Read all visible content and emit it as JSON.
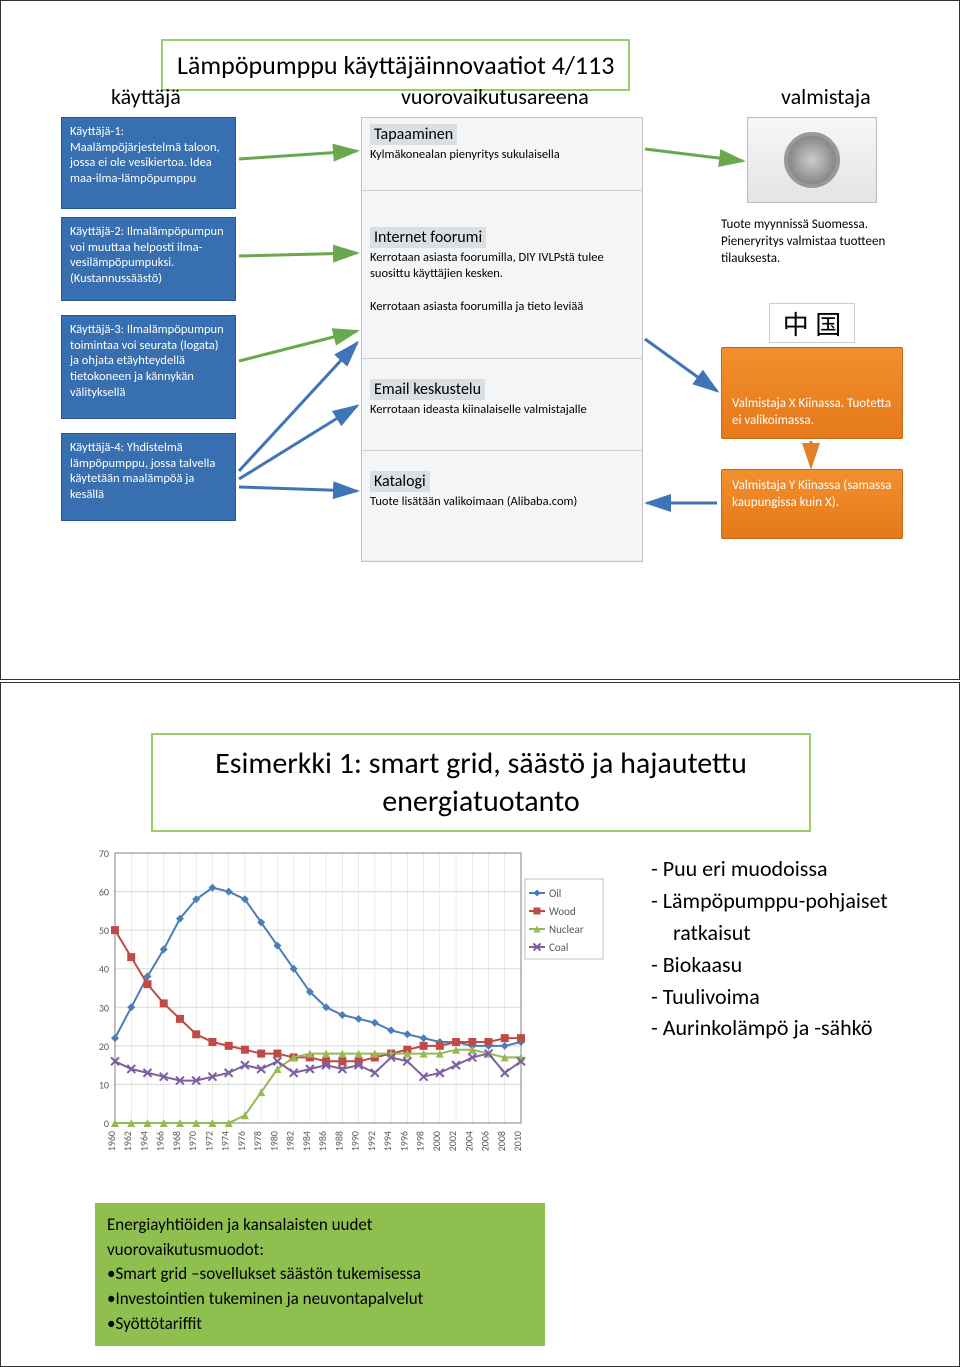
{
  "slide1": {
    "title": "Lämpöpumppu käyttäjäinnovaatiot 4/113",
    "columns": {
      "user": "käyttäjä",
      "arena": "vuorovaikutusareena",
      "manuf": "valmistaja"
    },
    "users": [
      "Käyttäjä-1:\nMaalämpöjärjestelmä taloon, jossa ei ole vesikiertoa. Idea maa-ilma-lämpöpumppu",
      "Käyttäjä-2:\nIlmalämpöpumpun voi muuttaa helposti ilma-vesilämpöpumpuksi. (Kustannussäästö)",
      "Käyttäjä-3:\nIlmalämpöpumpun toimintaa voi seurata (logata) ja ohjata etäyhteydellä tietokoneen ja kännykän välityksellä",
      "Käyttäjä-4:\nYhdistelmä lämpöpumppu, jossa talvella käytetään maalämpöä ja kesällä"
    ],
    "mid": [
      {
        "title": "Tapaaminen",
        "sub": "Kylmäkonealan pienyritys sukulaisella"
      },
      {
        "title": "Internet foorumi",
        "sub": "Kerrotaan asiasta foorumilla, DIY IVLPstä tulee suosittu käyttäjien kesken.",
        "extra": "Kerrotaan asiasta foorumilla ja tieto leviää"
      },
      {
        "title": "Email keskustelu",
        "sub": "Kerrotaan ideasta kiinalaiselle valmistajalle"
      },
      {
        "title": "Katalogi",
        "sub": "Tuote lisätään valikoimaan (Alibaba.com)"
      }
    ],
    "manuf_caption": "Tuote myynnissä Suomessa. Pieneryritys valmistaa tuotteen tilauksesta.",
    "china_chars": "中 国",
    "valm_x": "Valmistaja X Kiinassa. Tuotetta ei valikoimassa.",
    "valm_y": "Valmistaja Y Kiinassa (samassa kaupungissa kuin X).",
    "colors": {
      "user_box_bg": "#376fb0",
      "title_border": "#9acd6b",
      "valm_bg": "#e6791a",
      "arrow_green": "#6aa84f",
      "arrow_blue": "#3f74b6",
      "arrow_orange": "#e0812a"
    }
  },
  "slide2": {
    "title": "Esimerkki 1: smart grid, säästö ja hajautettu energiatuotanto",
    "bullets": [
      "Puu eri muodoissa",
      "Lämpöpumppu-pohjaiset ratkaisut",
      "Biokaasu",
      "Tuulivoima",
      "Aurinkolämpö ja -sähkö"
    ],
    "green_box": {
      "heading": "Energiayhtiöiden ja kansalaisten uudet vuorovaikutusmuodot:",
      "items": [
        "Smart grid –sovellukset säästön tukemisessa",
        "Investointien tukeminen ja neuvontapalvelut",
        "Syöttötariffit"
      ]
    },
    "chart": {
      "type": "line",
      "xlim": [
        1960,
        2010
      ],
      "ylim": [
        0,
        70
      ],
      "ytick_step": 10,
      "xtick_step": 2,
      "background_color": "#ffffff",
      "grid_color": "#d9d9d9",
      "axis_color": "#808080",
      "label_fontsize": 10,
      "legend_fontsize": 11,
      "legend_position": "right",
      "line_width": 2,
      "marker_size": 4,
      "series": [
        {
          "name": "Oil",
          "color": "#4a7ebb",
          "marker": "diamond",
          "years": [
            1960,
            1962,
            1964,
            1966,
            1968,
            1970,
            1972,
            1974,
            1976,
            1978,
            1980,
            1982,
            1984,
            1986,
            1988,
            1990,
            1992,
            1994,
            1996,
            1998,
            2000,
            2002,
            2004,
            2006,
            2008,
            2010
          ],
          "values": [
            22,
            30,
            38,
            45,
            53,
            58,
            61,
            60,
            58,
            52,
            46,
            40,
            34,
            30,
            28,
            27,
            26,
            24,
            23,
            22,
            21,
            21,
            20,
            20,
            20,
            21
          ]
        },
        {
          "name": "Wood",
          "color": "#be4b48",
          "marker": "square",
          "years": [
            1960,
            1962,
            1964,
            1966,
            1968,
            1970,
            1972,
            1974,
            1976,
            1978,
            1980,
            1982,
            1984,
            1986,
            1988,
            1990,
            1992,
            1994,
            1996,
            1998,
            2000,
            2002,
            2004,
            2006,
            2008,
            2010
          ],
          "values": [
            50,
            43,
            36,
            31,
            27,
            23,
            21,
            20,
            19,
            18,
            18,
            17,
            17,
            16,
            16,
            16,
            17,
            18,
            19,
            20,
            20,
            21,
            21,
            21,
            22,
            22
          ]
        },
        {
          "name": "Nuclear",
          "color": "#98b954",
          "marker": "triangle",
          "years": [
            1960,
            1962,
            1964,
            1966,
            1968,
            1970,
            1972,
            1974,
            1976,
            1978,
            1980,
            1982,
            1984,
            1986,
            1988,
            1990,
            1992,
            1994,
            1996,
            1998,
            2000,
            2002,
            2004,
            2006,
            2008,
            2010
          ],
          "values": [
            0,
            0,
            0,
            0,
            0,
            0,
            0,
            0,
            2,
            8,
            14,
            17,
            18,
            18,
            18,
            18,
            18,
            18,
            18,
            18,
            18,
            19,
            19,
            18,
            17,
            17
          ]
        },
        {
          "name": "Coal",
          "color": "#7d60a0",
          "marker": "x",
          "years": [
            1960,
            1962,
            1964,
            1966,
            1968,
            1970,
            1972,
            1974,
            1976,
            1978,
            1980,
            1982,
            1984,
            1986,
            1988,
            1990,
            1992,
            1994,
            1996,
            1998,
            2000,
            2002,
            2004,
            2006,
            2008,
            2010
          ],
          "values": [
            16,
            14,
            13,
            12,
            11,
            11,
            12,
            13,
            15,
            14,
            16,
            13,
            14,
            15,
            14,
            15,
            13,
            17,
            16,
            12,
            13,
            15,
            17,
            18,
            13,
            16
          ]
        }
      ]
    },
    "green_box_bg": "#8fbf4f"
  }
}
